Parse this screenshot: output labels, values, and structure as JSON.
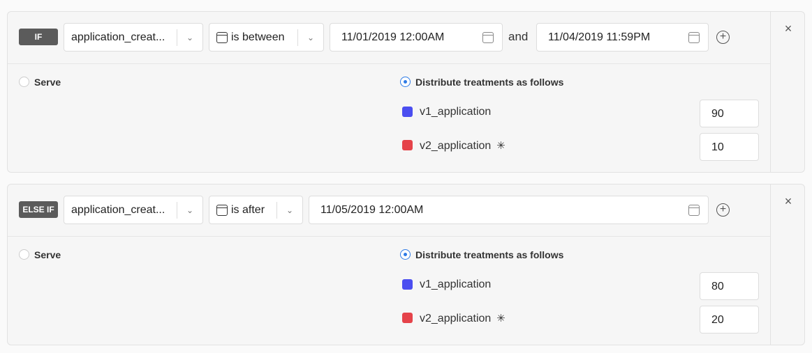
{
  "colors": {
    "v1": "#4b4ef0",
    "v2": "#e5434a",
    "badge": "#5b5b5b",
    "radio_selected": "#2e7be6"
  },
  "rules": [
    {
      "badge": "IF",
      "field": "application_creat...",
      "operator": "is between",
      "date_from": "11/01/2019 12:00AM",
      "conjunction": "and",
      "date_to": "11/04/2019 11:59PM",
      "serve_label": "Serve",
      "distribute_label": "Distribute treatments as follows",
      "treatments": [
        {
          "name": "v1_application",
          "value": "90"
        },
        {
          "name": "v2_application",
          "value": "10",
          "icon": "asterisk-icon"
        }
      ]
    },
    {
      "badge": "ELSE IF",
      "field": "application_creat...",
      "operator": "is after",
      "date_from": "11/05/2019 12:00AM",
      "serve_label": "Serve",
      "distribute_label": "Distribute treatments as follows",
      "treatments": [
        {
          "name": "v1_application",
          "value": "80"
        },
        {
          "name": "v2_application",
          "value": "20",
          "icon": "asterisk-icon"
        }
      ]
    }
  ],
  "icons": {
    "close": "×",
    "star": "✳",
    "plus": "+",
    "chevron": "⌄"
  }
}
